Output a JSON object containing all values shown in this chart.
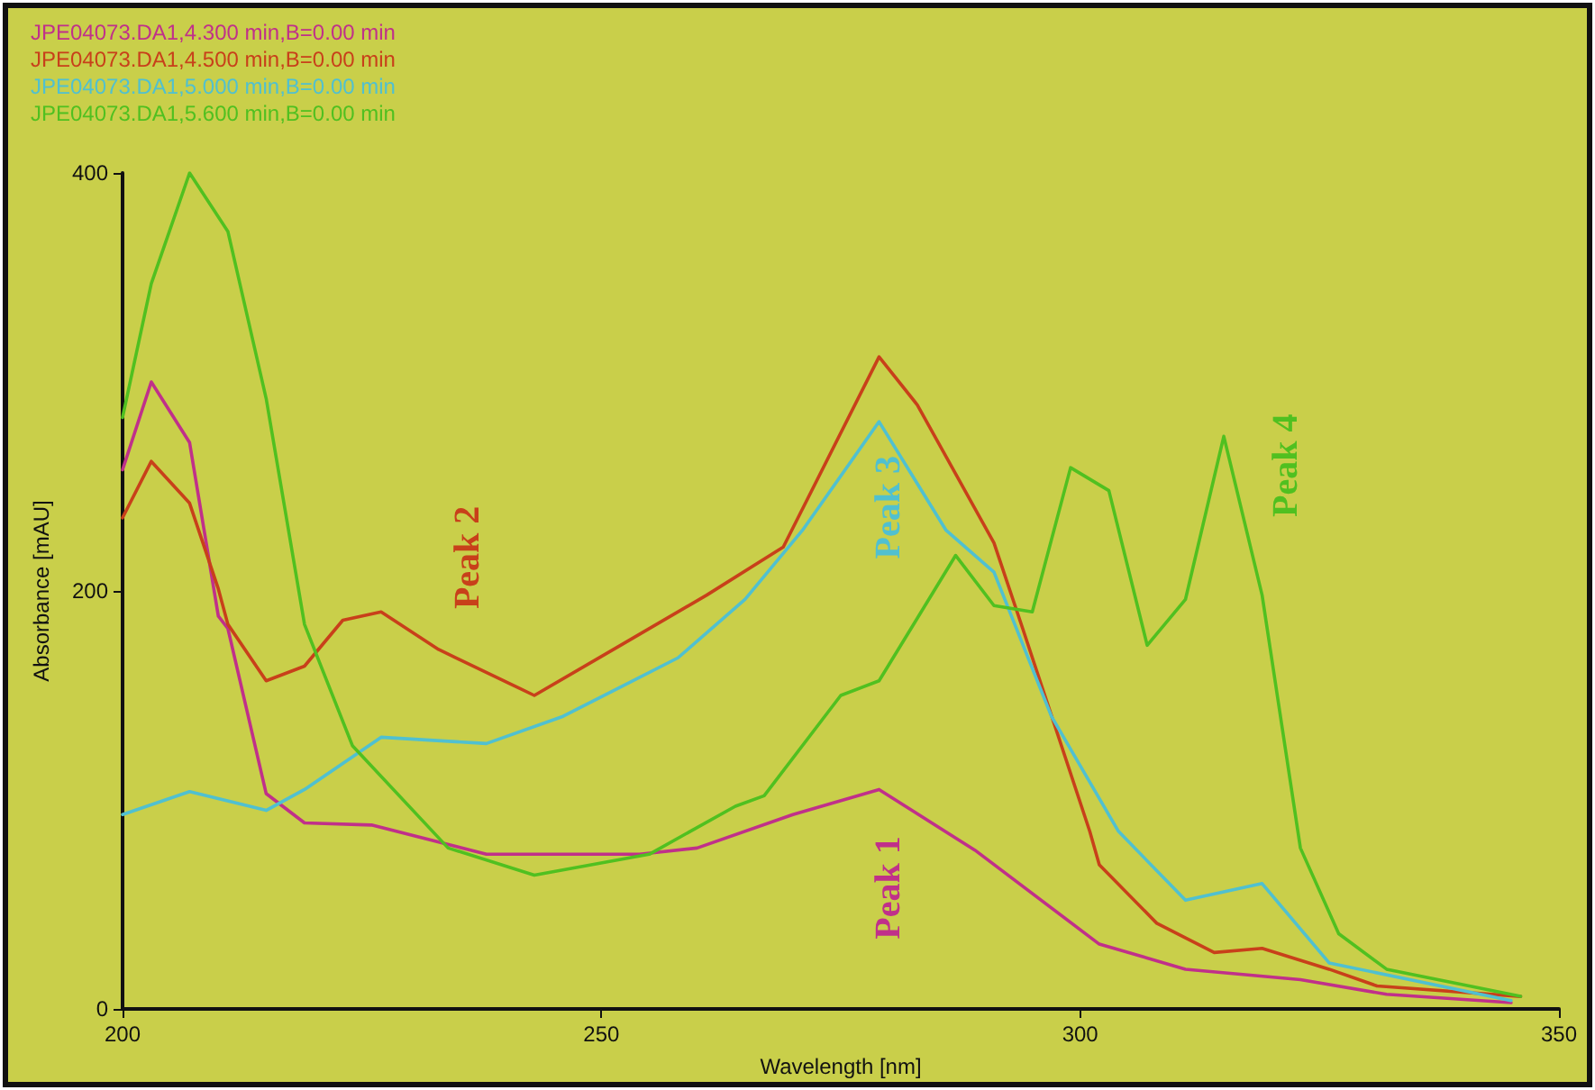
{
  "chart_data": {
    "type": "line",
    "xlabel": "Wavelength [nm]",
    "ylabel": "Absorbance [mAU]",
    "xlim": [
      200,
      350
    ],
    "xticks": [
      200,
      250,
      300,
      350
    ],
    "ylim": [
      0,
      400
    ],
    "yticks": [
      0,
      200,
      400
    ],
    "grid": false,
    "legend": "top left",
    "marker": "none",
    "line_style": "solid",
    "series": [
      {
        "name": "JPE04073.DA1,4.300 min,B=0.00 min",
        "color": "#c0308a",
        "x": [
          200,
          203,
          207,
          210,
          211,
          215,
          219,
          226,
          238,
          254,
          260,
          270,
          279,
          289,
          302,
          311,
          323,
          332,
          345
        ],
        "values": [
          258,
          300,
          271,
          188,
          182,
          103,
          89,
          88,
          74,
          74,
          77,
          93,
          105,
          76,
          31,
          19,
          14,
          7,
          3
        ]
      },
      {
        "name": "JPE04073.DA1,4.500 min,B=0.00 min",
        "color": "#c8401a",
        "x": [
          200,
          203,
          207,
          210,
          211,
          215,
          219,
          223,
          227,
          233,
          243,
          252,
          261,
          269,
          279,
          283,
          291,
          294,
          301,
          302,
          308,
          314,
          319,
          326,
          331,
          346
        ],
        "values": [
          235,
          262,
          242,
          201,
          184,
          157,
          164,
          186,
          190,
          172,
          150,
          174,
          198,
          221,
          312,
          289,
          223,
          182,
          85,
          69,
          41,
          27,
          29,
          19,
          11,
          6
        ]
      },
      {
        "name": "JPE04073.DA1,5.000 min,B=0.00 min",
        "color": "#50c0d0",
        "x": [
          200,
          207,
          215,
          219,
          227,
          238,
          246,
          258,
          265,
          271,
          279,
          286,
          291,
          297,
          304,
          311,
          319,
          326,
          345
        ],
        "values": [
          93,
          104,
          95,
          105,
          130,
          127,
          140,
          168,
          196,
          229,
          281,
          229,
          209,
          140,
          85,
          52,
          60,
          22,
          4
        ]
      },
      {
        "name": "JPE04073.DA1,5.600 min,B=0.00 min",
        "color": "#50c020",
        "x": [
          200,
          203,
          207,
          211,
          215,
          219,
          224,
          234,
          243,
          255,
          264,
          267,
          275,
          279,
          287,
          291,
          295,
          299,
          303,
          307,
          311,
          315,
          319,
          323,
          327,
          332,
          346
        ],
        "values": [
          283,
          347,
          400,
          372,
          292,
          184,
          126,
          77,
          64,
          74,
          97,
          102,
          150,
          157,
          217,
          193,
          190,
          259,
          248,
          174,
          196,
          274,
          198,
          77,
          36,
          19,
          6
        ]
      }
    ],
    "annotations": [
      "Peak 1",
      "Peak 2",
      "Peak 3",
      "Peak 4"
    ]
  }
}
